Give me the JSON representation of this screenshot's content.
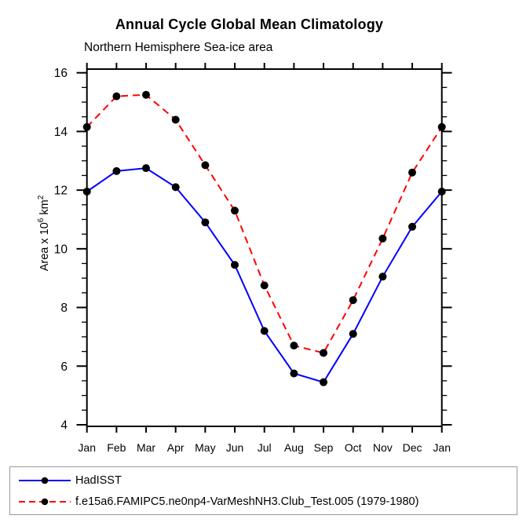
{
  "title": "Annual Cycle Global Mean Climatology",
  "subtitle": "Northern Hemisphere Sea-ice area",
  "ylabel": {
    "text1": "Area x 10",
    "sup1": "6",
    "text2": " km",
    "sup2": "2"
  },
  "colors": {
    "axis": "#000000",
    "hadisst_line": "#0000ff",
    "model_line": "#ff0000",
    "marker": "#000000",
    "legend_border": "#999999"
  },
  "legend": {
    "items": [
      {
        "label": "HadISST",
        "color": "#0000ff",
        "dash": "solid",
        "marker_color": "#000000"
      },
      {
        "label": "f.e15a6.FAMIPC5.ne0np4-VarMeshNH3.Club_Test.005 (1979-1980)",
        "color": "#ff0000",
        "dash": "dashed",
        "marker_color": "#000000"
      }
    ]
  },
  "chart_data": {
    "type": "line",
    "title": "Annual Cycle Global Mean Climatology",
    "subtitle": "Northern Hemisphere Sea-ice area",
    "ylabel": "Area x 10^6 km^2",
    "x": [
      "Jan",
      "Feb",
      "Mar",
      "Apr",
      "May",
      "Jun",
      "Jul",
      "Aug",
      "Sep",
      "Oct",
      "Nov",
      "Dec",
      "Jan"
    ],
    "ylim": [
      4,
      16
    ],
    "ytick_major": [
      4,
      6,
      8,
      10,
      12,
      14,
      16
    ],
    "ytick_labels": [
      "4",
      "6",
      "8",
      "10",
      "12",
      "14",
      "16"
    ],
    "ytick_minor_step": 0.5,
    "grid": false,
    "legend_position": "bottom-left-outside",
    "series": [
      {
        "name": "HadISST",
        "color": "#0000ff",
        "line_style": "solid",
        "marker": "circle",
        "marker_color": "#000000",
        "values": [
          11.95,
          12.65,
          12.75,
          12.1,
          10.9,
          9.45,
          7.2,
          5.75,
          5.45,
          7.1,
          9.05,
          10.75,
          11.95
        ]
      },
      {
        "name": "f.e15a6.FAMIPC5.ne0np4-VarMeshNH3.Club_Test.005 (1979-1980)",
        "color": "#ff0000",
        "line_style": "dashed",
        "marker": "circle",
        "marker_color": "#000000",
        "values": [
          14.15,
          15.2,
          15.25,
          14.4,
          12.85,
          11.3,
          8.75,
          6.7,
          6.45,
          8.25,
          10.35,
          12.6,
          14.15
        ]
      }
    ]
  }
}
